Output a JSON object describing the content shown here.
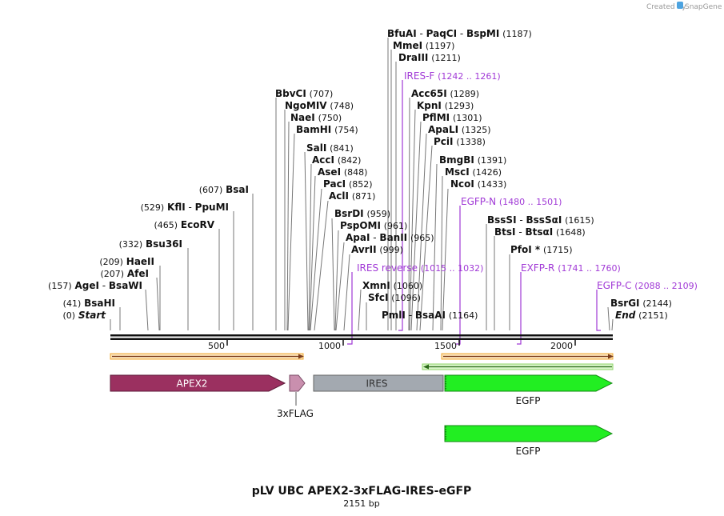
{
  "credit": {
    "prefix": "Created by",
    "brand": "SnapGene"
  },
  "title": "pLV UBC APEX2-3xFLAG-IRES-eGFP",
  "subtitle": "2151 bp",
  "ticks": [
    "500",
    "1000",
    "1500",
    "2000"
  ],
  "sites": {
    "bfuai": {
      "a": "BfuAI",
      "b": "PaqCI",
      "c": "BspMI",
      "pos": "(1187)"
    },
    "mmei": {
      "name": "MmeI",
      "pos": "(1197)"
    },
    "draiii": {
      "name": "DraIII",
      "pos": "(1211)"
    },
    "bbvci": {
      "name": "BbvCI",
      "pos": "(707)"
    },
    "ngomiv": {
      "name": "NgoMIV",
      "pos": "(748)"
    },
    "naei": {
      "name": "NaeI",
      "pos": "(750)"
    },
    "bamhi": {
      "name": "BamHI",
      "pos": "(754)"
    },
    "sali": {
      "name": "SalI",
      "pos": "(841)"
    },
    "acci": {
      "name": "AccI",
      "pos": "(842)"
    },
    "asei": {
      "name": "AseI",
      "pos": "(848)"
    },
    "paci": {
      "name": "PacI",
      "pos": "(852)"
    },
    "acli": {
      "name": "AclI",
      "pos": "(871)"
    },
    "bsrdi": {
      "name": "BsrDI",
      "pos": "(959)"
    },
    "pspomi": {
      "name": "PspOMI",
      "pos": "(961)"
    },
    "apai": {
      "a": "ApaI",
      "b": "BanII",
      "pos": "(965)"
    },
    "avrii": {
      "name": "AvrII",
      "pos": "(999)"
    },
    "xmni": {
      "name": "XmnI",
      "pos": "(1060)"
    },
    "sfci": {
      "name": "SfcI",
      "pos": "(1096)"
    },
    "pmli": {
      "a": "PmlI",
      "b": "BsaAI",
      "pos": "(1164)"
    },
    "acc65i": {
      "name": "Acc65I",
      "pos": "(1289)"
    },
    "kpni": {
      "name": "KpnI",
      "pos": "(1293)"
    },
    "pflmi": {
      "name": "PflMI",
      "pos": "(1301)"
    },
    "apali": {
      "name": "ApaLI",
      "pos": "(1325)"
    },
    "pcii": {
      "name": "PciI",
      "pos": "(1338)"
    },
    "bmgbi": {
      "name": "BmgBI",
      "pos": "(1391)"
    },
    "msci": {
      "name": "MscI",
      "pos": "(1426)"
    },
    "ncoi": {
      "name": "NcoI",
      "pos": "(1433)"
    },
    "bsssi": {
      "a": "BssSI",
      "b": "BssSαI",
      "pos": "(1615)"
    },
    "btsi": {
      "a": "BtsI",
      "b": "BtsαI",
      "pos": "(1648)"
    },
    "pfoi": {
      "name": "PfoI *",
      "pos": "(1715)"
    },
    "bsrgi": {
      "name": "BsrGI",
      "pos": "(2144)"
    },
    "end": {
      "name": "End",
      "pos": "(2151)"
    },
    "bsai": {
      "name": "BsaI",
      "pos": "(607)"
    },
    "kfli": {
      "a": "KflI",
      "b": "PpuMI",
      "pos": "(529)"
    },
    "ecorv": {
      "name": "EcoRV",
      "pos": "(465)"
    },
    "bsu36i": {
      "name": "Bsu36I",
      "pos": "(332)"
    },
    "haeii": {
      "name": "HaeII",
      "pos": "(209)"
    },
    "afei": {
      "name": "AfeI",
      "pos": "(207)"
    },
    "agei": {
      "a": "AgeI",
      "b": "BsaWI",
      "pos": "(157)"
    },
    "bsahi": {
      "name": "BsaHI",
      "pos": "(41)"
    },
    "start": {
      "name": "Start",
      "pos": "(0)"
    }
  },
  "primers": {
    "iresf": {
      "name": "IRES-F",
      "pos": "(1242 .. 1261)"
    },
    "egfpn": {
      "name": "EGFP-N",
      "pos": "(1480 .. 1501)"
    },
    "iresrev": {
      "name": "IRES reverse",
      "pos": "(1015 .. 1032)"
    },
    "exfpr": {
      "name": "EXFP-R",
      "pos": "(1741 .. 1760)"
    },
    "egfpc": {
      "name": "EGFP-C",
      "pos": "(2088 .. 2109)"
    }
  },
  "features": {
    "apex2": "APEX2",
    "flag": "3xFLAG",
    "ires": "IRES",
    "egfp1": "EGFP",
    "egfp2": "EGFP"
  },
  "colors": {
    "apex2": "#9b3060",
    "flag": "#c98fae",
    "ires": "#a3a9b0",
    "egfp": "#22ee22",
    "primer": "#a13ad6",
    "orf": "#f0a830"
  }
}
